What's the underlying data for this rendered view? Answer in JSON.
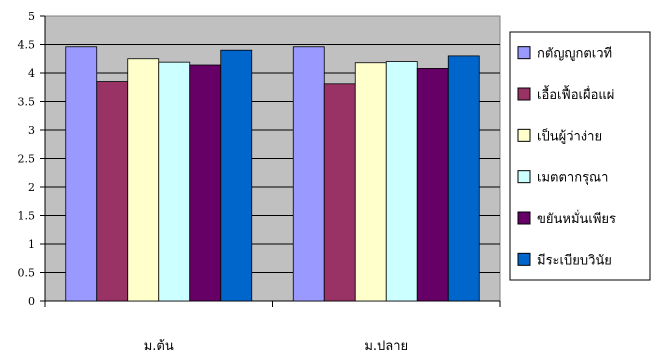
{
  "chart_data": {
    "type": "bar",
    "categories": [
      "ม.ต้น",
      "ม.ปลาย"
    ],
    "series": [
      {
        "name": "กตัญญูกตเวที",
        "color": "#9999ff",
        "values": [
          4.46,
          4.46
        ]
      },
      {
        "name": "เอื้อเฟื้อเผื่อแผ่",
        "color": "#993366",
        "values": [
          3.85,
          3.81
        ]
      },
      {
        "name": "เป็นผู้ว่าง่าย",
        "color": "#ffffcc",
        "values": [
          4.25,
          4.18
        ]
      },
      {
        "name": "เมตตากรุณา",
        "color": "#ccffff",
        "values": [
          4.19,
          4.2
        ]
      },
      {
        "name": "ขยันหมั่นเพียร",
        "color": "#660066",
        "values": [
          4.14,
          4.08
        ]
      },
      {
        "name": "มีระเบียบวินัย",
        "color": "#0066cc",
        "values": [
          4.4,
          4.3
        ]
      }
    ],
    "ylim": [
      0,
      5
    ],
    "yticks": [
      "0",
      "0.5",
      "1",
      "1.5",
      "2",
      "2.5",
      "3",
      "3.5",
      "4",
      "4.5",
      "5"
    ],
    "grid": true,
    "plot_background": "#c0c0c0",
    "legend_placement": "right"
  }
}
